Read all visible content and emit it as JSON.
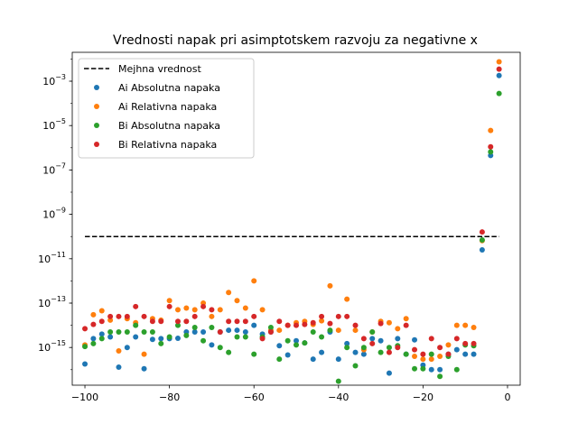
{
  "chart_data": {
    "type": "scatter",
    "title": "Vrednosti napak pri asimptotskem razvoju za negativne x",
    "xlabel": "",
    "ylabel": "",
    "xlim": [
      -103,
      3
    ],
    "ylim": [
      2e-17,
      0.02
    ],
    "yscale": "log",
    "x_ticks": [
      -100,
      -80,
      -60,
      -40,
      -20,
      0
    ],
    "x_tick_labels": [
      "−100",
      "−80",
      "−60",
      "−40",
      "−20",
      "0"
    ],
    "y_ticks": [
      1e-15,
      1e-13,
      1e-11,
      1e-09,
      1e-07,
      1e-05,
      0.001
    ],
    "y_tick_base": "10",
    "y_tick_exponents": [
      "−15",
      "−13",
      "−11",
      "−9",
      "−7",
      "−5",
      "−3"
    ],
    "grid": false,
    "legend_position": "upper-left",
    "x": [
      -100,
      -98,
      -96,
      -94,
      -92,
      -90,
      -88,
      -86,
      -84,
      -82,
      -80,
      -78,
      -76,
      -74,
      -72,
      -70,
      -68,
      -66,
      -64,
      -62,
      -60,
      -58,
      -56,
      -54,
      -52,
      -50,
      -48,
      -46,
      -44,
      -42,
      -40,
      -38,
      -36,
      -34,
      -32,
      -30,
      -28,
      -26,
      -24,
      -22,
      -20,
      -18,
      -16,
      -14,
      -12,
      -10,
      -8,
      -6,
      -4,
      -2
    ],
    "threshold_line": {
      "name": "Mejhna vrednost",
      "x": [
        -100,
        -2
      ],
      "y": [
        1e-10,
        1e-10
      ],
      "color": "#000000"
    },
    "series": [
      {
        "name": "Ai Absolutna napaka",
        "color": "#1f77b4",
        "values": [
          1.8e-16,
          2.5e-15,
          4e-15,
          3e-15,
          1.3e-16,
          1e-15,
          3e-15,
          1.1e-16,
          2.3e-15,
          2.5e-15,
          2.5e-15,
          2.6e-15,
          5e-15,
          5e-15,
          5e-15,
          1.3e-15,
          5e-15,
          6e-15,
          6e-15,
          5e-15,
          1e-14,
          4e-15,
          5e-15,
          1.2e-15,
          4.6e-16,
          2e-15,
          1.6e-15,
          3e-16,
          6e-16,
          5e-15,
          3e-16,
          1.5e-15,
          6e-16,
          5e-16,
          2.5e-15,
          2e-15,
          7e-17,
          2.5e-15,
          5e-16,
          2.2e-15,
          1.6e-16,
          1e-16,
          1e-16,
          5e-16,
          8e-16,
          5e-16,
          5e-16,
          2.5e-11,
          4.5e-07,
          0.0018
        ]
      },
      {
        "name": "Ai Relativna napaka",
        "color": "#ff7f0e",
        "values": [
          1.3e-15,
          3e-14,
          4.5e-14,
          1.7e-14,
          7e-16,
          2e-14,
          1.3e-14,
          5e-16,
          2e-14,
          1.7e-14,
          1.3e-13,
          5e-14,
          6e-14,
          5e-14,
          1e-13,
          2.5e-14,
          5e-14,
          3e-13,
          1.3e-13,
          6e-14,
          1e-12,
          5e-14,
          6e-15,
          6e-15,
          1e-14,
          1.3e-14,
          1.5e-14,
          1.1e-14,
          1.6e-14,
          6e-13,
          6e-15,
          1.5e-13,
          6e-15,
          8e-16,
          5e-15,
          1.5e-14,
          1.3e-14,
          7e-15,
          2e-14,
          4e-16,
          3e-16,
          3e-16,
          4e-16,
          1.3e-15,
          1e-14,
          1e-14,
          8e-15,
          6.5e-11,
          6e-06,
          0.0075
        ]
      },
      {
        "name": "Bi Absolutna napaka",
        "color": "#2ca02c",
        "values": [
          1.1e-15,
          1.5e-15,
          2.5e-15,
          5e-15,
          5e-15,
          5e-15,
          1e-14,
          5e-15,
          5e-15,
          1.5e-15,
          3e-15,
          1e-14,
          3.5e-15,
          8e-15,
          2e-15,
          8e-15,
          1e-15,
          6e-16,
          3e-15,
          3e-15,
          5e-16,
          3e-15,
          8e-15,
          3e-16,
          2e-15,
          1.3e-15,
          1.6e-15,
          5e-15,
          3e-15,
          6e-15,
          3e-17,
          1e-15,
          1.5e-16,
          1e-15,
          5e-15,
          6e-16,
          1e-15,
          1.2e-15,
          5e-16,
          1.1e-16,
          1.1e-16,
          5e-16,
          5e-17,
          4e-16,
          1e-16,
          1.3e-15,
          1.2e-15,
          7e-11,
          6.5e-07,
          0.00028
        ]
      },
      {
        "name": "Bi Relativna napaka",
        "color": "#d62728",
        "values": [
          7e-15,
          1.1e-14,
          1.5e-14,
          2.5e-14,
          2.5e-14,
          2.5e-14,
          7e-14,
          2.5e-14,
          1.5e-14,
          1.5e-14,
          7e-14,
          1.5e-14,
          1.5e-14,
          2.5e-14,
          7e-14,
          5e-14,
          5e-15,
          1.5e-14,
          1.5e-14,
          1.5e-14,
          2.5e-14,
          2.5e-15,
          5e-15,
          1.5e-14,
          1e-14,
          1e-14,
          1.1e-14,
          1.3e-14,
          2.5e-14,
          1.2e-14,
          2.5e-14,
          2.5e-14,
          1e-14,
          2.5e-15,
          1.5e-15,
          1.2e-14,
          6e-16,
          1e-15,
          1e-14,
          8e-16,
          5e-16,
          2.5e-15,
          1e-15,
          5e-16,
          2.5e-15,
          1.5e-15,
          1.5e-15,
          1.6e-10,
          1.1e-06,
          0.0035
        ]
      }
    ]
  }
}
